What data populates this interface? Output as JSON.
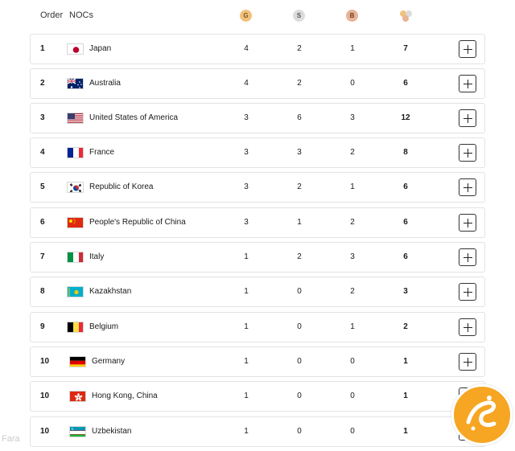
{
  "header": {
    "order_label": "Order",
    "nocs_label": "NOCs",
    "gold_icon": "G",
    "silver_icon": "S",
    "bronze_icon": "B",
    "total_icon": "medals-total-icon"
  },
  "colors": {
    "gold": "#f1c27d",
    "silver": "#dcdcdc",
    "bronze": "#e7b497",
    "row_border": "#e3e3e3",
    "watermark": "#f6a623"
  },
  "rows": [
    {
      "rank": "1",
      "noc": "Japan",
      "flag": "japan",
      "gold": "4",
      "silver": "2",
      "bronze": "1",
      "total": "7"
    },
    {
      "rank": "2",
      "noc": "Australia",
      "flag": "australia",
      "gold": "4",
      "silver": "2",
      "bronze": "0",
      "total": "6"
    },
    {
      "rank": "3",
      "noc": "United States of America",
      "flag": "usa",
      "gold": "3",
      "silver": "6",
      "bronze": "3",
      "total": "12"
    },
    {
      "rank": "4",
      "noc": "France",
      "flag": "france",
      "gold": "3",
      "silver": "3",
      "bronze": "2",
      "total": "8"
    },
    {
      "rank": "5",
      "noc": "Republic of Korea",
      "flag": "korea",
      "gold": "3",
      "silver": "2",
      "bronze": "1",
      "total": "6"
    },
    {
      "rank": "6",
      "noc": "People's Republic of China",
      "flag": "china",
      "gold": "3",
      "silver": "1",
      "bronze": "2",
      "total": "6"
    },
    {
      "rank": "7",
      "noc": "Italy",
      "flag": "italy",
      "gold": "1",
      "silver": "2",
      "bronze": "3",
      "total": "6"
    },
    {
      "rank": "8",
      "noc": "Kazakhstan",
      "flag": "kazakhstan",
      "gold": "1",
      "silver": "0",
      "bronze": "2",
      "total": "3"
    },
    {
      "rank": "9",
      "noc": "Belgium",
      "flag": "belgium",
      "gold": "1",
      "silver": "0",
      "bronze": "1",
      "total": "2"
    },
    {
      "rank": "10",
      "noc": "Germany",
      "flag": "germany",
      "gold": "1",
      "silver": "0",
      "bronze": "0",
      "total": "1"
    },
    {
      "rank": "10",
      "noc": "Hong Kong, China",
      "flag": "hongkong",
      "gold": "1",
      "silver": "0",
      "bronze": "0",
      "total": "1"
    },
    {
      "rank": "10",
      "noc": "Uzbekistan",
      "flag": "uzbekistan",
      "gold": "1",
      "silver": "0",
      "bronze": "0",
      "total": "1"
    }
  ],
  "watermark": {
    "text": "Fara",
    "logo": "farsnews-logo"
  }
}
